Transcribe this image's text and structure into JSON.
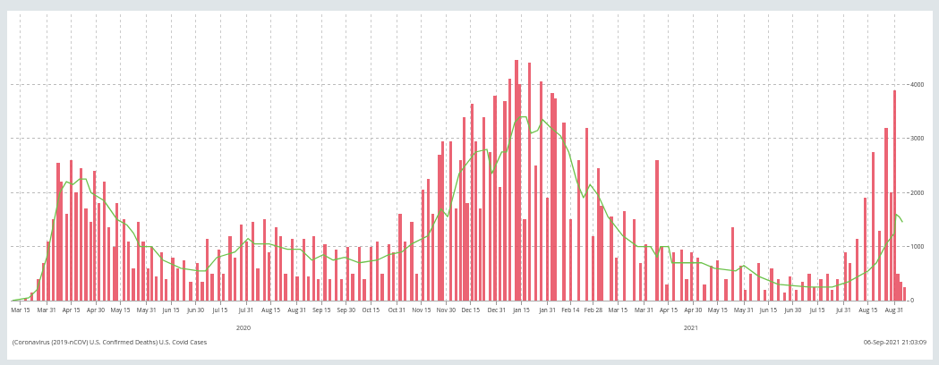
{
  "chart_data": {
    "type": "bar",
    "xlim": [
      "2020-03-09",
      "2021-09-07"
    ],
    "ylim": [
      0,
      5300
    ],
    "yticks": [
      0,
      1000,
      2000,
      3000,
      4000
    ],
    "xticks": [
      {
        "value": "2020-03-15",
        "label": "Mar 15"
      },
      {
        "value": "2020-03-31",
        "label": "Mar 31"
      },
      {
        "value": "2020-04-15",
        "label": "Apr 15"
      },
      {
        "value": "2020-04-30",
        "label": "Apr 30"
      },
      {
        "value": "2020-05-15",
        "label": "May 15"
      },
      {
        "value": "2020-05-31",
        "label": "May 31"
      },
      {
        "value": "2020-06-15",
        "label": "Jun 15"
      },
      {
        "value": "2020-06-30",
        "label": "Jun 30"
      },
      {
        "value": "2020-07-15",
        "label": "Jul 15"
      },
      {
        "value": "2020-07-31",
        "label": "Jul 31"
      },
      {
        "value": "2020-08-15",
        "label": "Aug 15"
      },
      {
        "value": "2020-08-31",
        "label": "Aug 31"
      },
      {
        "value": "2020-09-15",
        "label": "Sep 15"
      },
      {
        "value": "2020-09-30",
        "label": "Sep 30"
      },
      {
        "value": "2020-10-15",
        "label": "Oct 15"
      },
      {
        "value": "2020-10-31",
        "label": "Oct 31"
      },
      {
        "value": "2020-11-15",
        "label": "Nov 15"
      },
      {
        "value": "2020-11-30",
        "label": "Nov 30"
      },
      {
        "value": "2020-12-15",
        "label": "Dec 15"
      },
      {
        "value": "2020-12-31",
        "label": "Dec 31"
      },
      {
        "value": "2021-01-15",
        "label": "Jan 15"
      },
      {
        "value": "2021-01-31",
        "label": "Jan 31"
      },
      {
        "value": "2021-02-14",
        "label": "Feb 14"
      },
      {
        "value": "2021-02-28",
        "label": "Feb 28"
      },
      {
        "value": "2021-03-15",
        "label": "Mar 15"
      },
      {
        "value": "2021-03-31",
        "label": "Mar 31"
      },
      {
        "value": "2021-04-15",
        "label": "Apr 15"
      },
      {
        "value": "2021-04-30",
        "label": "Apr 30"
      },
      {
        "value": "2021-05-15",
        "label": "May 15"
      },
      {
        "value": "2021-05-31",
        "label": "May 31"
      },
      {
        "value": "2021-06-15",
        "label": "Jun 15"
      },
      {
        "value": "2021-06-30",
        "label": "Jun 30"
      },
      {
        "value": "2021-07-15",
        "label": "Jul 15"
      },
      {
        "value": "2021-07-31",
        "label": "Jul 31"
      },
      {
        "value": "2021-08-15",
        "label": "Aug 15"
      },
      {
        "value": "2021-08-31",
        "label": "Aug 31"
      }
    ],
    "grid": true,
    "annotations": [
      "2020",
      "2021",
      "(Coronavirus (2019-nCOV) U.S. Confirmed Deaths) U.S. Covid Cases",
      "06-Sep-2021 21:03:09"
    ],
    "series": [
      {
        "color": "#e84a5c",
        "x": [
          "2020-03-10",
          "2020-03-14",
          "2020-03-18",
          "2020-03-22",
          "2020-03-26",
          "2020-03-29",
          "2020-04-01",
          "2020-04-04",
          "2020-04-07",
          "2020-04-09",
          "2020-04-12",
          "2020-04-15",
          "2020-04-18",
          "2020-04-21",
          "2020-04-24",
          "2020-04-27",
          "2020-04-29",
          "2020-05-02",
          "2020-05-05",
          "2020-05-08",
          "2020-05-11",
          "2020-05-13",
          "2020-05-17",
          "2020-05-20",
          "2020-05-23",
          "2020-05-26",
          "2020-05-29",
          "2020-06-01",
          "2020-06-03",
          "2020-06-06",
          "2020-06-09",
          "2020-06-12",
          "2020-06-16",
          "2020-06-19",
          "2020-06-23",
          "2020-06-27",
          "2020-07-01",
          "2020-07-04",
          "2020-07-07",
          "2020-07-10",
          "2020-07-14",
          "2020-07-17",
          "2020-07-21",
          "2020-07-24",
          "2020-07-28",
          "2020-07-31",
          "2020-08-04",
          "2020-08-07",
          "2020-08-11",
          "2020-08-14",
          "2020-08-18",
          "2020-08-21",
          "2020-08-24",
          "2020-08-28",
          "2020-08-31",
          "2020-09-04",
          "2020-09-07",
          "2020-09-10",
          "2020-09-13",
          "2020-09-17",
          "2020-09-20",
          "2020-09-24",
          "2020-09-27",
          "2020-10-01",
          "2020-10-04",
          "2020-10-08",
          "2020-10-11",
          "2020-10-15",
          "2020-10-19",
          "2020-10-22",
          "2020-10-26",
          "2020-10-29",
          "2020-11-02",
          "2020-11-05",
          "2020-11-09",
          "2020-11-12",
          "2020-11-16",
          "2020-11-19",
          "2020-11-22",
          "2020-11-26",
          "2020-11-28",
          "2020-12-03",
          "2020-12-06",
          "2020-12-09",
          "2020-12-11",
          "2020-12-13",
          "2020-12-16",
          "2020-12-18",
          "2020-12-21",
          "2020-12-23",
          "2020-12-27",
          "2020-12-30",
          "2021-01-02",
          "2021-01-05",
          "2021-01-08",
          "2021-01-12",
          "2021-01-14",
          "2021-01-17",
          "2021-01-20",
          "2021-01-24",
          "2021-01-27",
          "2021-01-31",
          "2021-02-03",
          "2021-02-05",
          "2021-02-10",
          "2021-02-14",
          "2021-02-19",
          "2021-02-24",
          "2021-02-28",
          "2021-03-03",
          "2021-03-05",
          "2021-03-11",
          "2021-03-14",
          "2021-03-19",
          "2021-03-25",
          "2021-03-29",
          "2021-04-01",
          "2021-04-08",
          "2021-04-11",
          "2021-04-14",
          "2021-04-18",
          "2021-04-23",
          "2021-04-26",
          "2021-04-29",
          "2021-05-03",
          "2021-05-07",
          "2021-05-11",
          "2021-05-15",
          "2021-05-20",
          "2021-05-24",
          "2021-05-29",
          "2021-06-01",
          "2021-06-04",
          "2021-06-09",
          "2021-06-13",
          "2021-06-17",
          "2021-06-21",
          "2021-06-25",
          "2021-06-28",
          "2021-07-02",
          "2021-07-06",
          "2021-07-10",
          "2021-07-13",
          "2021-07-17",
          "2021-07-21",
          "2021-07-24",
          "2021-07-27",
          "2021-08-01",
          "2021-08-04",
          "2021-08-08",
          "2021-08-13",
          "2021-08-18",
          "2021-08-22",
          "2021-08-26",
          "2021-08-29",
          "2021-08-31",
          "2021-09-02",
          "2021-09-04",
          "2021-09-06"
        ],
        "values": [
          0,
          0,
          50,
          150,
          400,
          700,
          1100,
          1500,
          2550,
          2200,
          1600,
          2600,
          2000,
          2450,
          1700,
          1450,
          2400,
          1800,
          2200,
          1350,
          1000,
          1800,
          1500,
          1100,
          600,
          1450,
          1100,
          600,
          1000,
          450,
          900,
          400,
          800,
          600,
          750,
          350,
          700,
          350,
          1150,
          500,
          950,
          500,
          1200,
          800,
          1400,
          1100,
          1450,
          600,
          1500,
          900,
          1350,
          1200,
          500,
          1150,
          450,
          1150,
          450,
          1200,
          400,
          1050,
          400,
          950,
          400,
          1000,
          500,
          1000,
          400,
          1000,
          1100,
          500,
          1050,
          900,
          1600,
          1100,
          1450,
          500,
          2050,
          2250,
          1600,
          2700,
          2950,
          2950,
          1700,
          2600,
          3400,
          1800,
          3650,
          2950,
          1700,
          3400,
          2750,
          3800,
          2100,
          3700,
          4100,
          4450,
          4000,
          1500,
          4400,
          2500,
          4050,
          1900,
          3850,
          3750,
          3300,
          1500,
          2600,
          3200,
          1200,
          2450,
          1750,
          1550,
          800,
          1650,
          1500,
          700,
          1050,
          2600,
          1000,
          300,
          900,
          950,
          400,
          900,
          800,
          300,
          650,
          750,
          400,
          1350,
          650,
          200,
          500,
          700,
          200,
          600,
          400,
          150,
          450,
          200,
          350,
          500,
          250,
          400,
          500,
          200,
          400,
          900,
          700,
          1150,
          1900,
          2750,
          1300,
          3200,
          2000,
          3900,
          500,
          350,
          250
        ]
      },
      {
        "type": "line",
        "color": "#6cc24a",
        "x": [
          "2020-03-10",
          "2020-03-20",
          "2020-03-25",
          "2020-03-31",
          "2020-04-04",
          "2020-04-08",
          "2020-04-12",
          "2020-04-16",
          "2020-04-20",
          "2020-04-24",
          "2020-04-27",
          "2020-05-05",
          "2020-05-13",
          "2020-05-19",
          "2020-05-23",
          "2020-05-27",
          "2020-06-03",
          "2020-06-10",
          "2020-06-21",
          "2020-07-02",
          "2020-07-06",
          "2020-07-13",
          "2020-07-24",
          "2020-08-01",
          "2020-08-05",
          "2020-08-14",
          "2020-08-25",
          "2020-09-02",
          "2020-09-09",
          "2020-09-16",
          "2020-09-22",
          "2020-09-29",
          "2020-10-08",
          "2020-10-19",
          "2020-10-26",
          "2020-11-03",
          "2020-11-09",
          "2020-11-19",
          "2020-11-27",
          "2020-12-01",
          "2020-12-08",
          "2020-12-18",
          "2020-12-25",
          "2020-12-28",
          "2021-01-03",
          "2021-01-06",
          "2021-01-11",
          "2021-01-14",
          "2021-01-18",
          "2021-01-21",
          "2021-01-25",
          "2021-01-28",
          "2021-02-02",
          "2021-02-08",
          "2021-02-13",
          "2021-02-18",
          "2021-02-22",
          "2021-02-26",
          "2021-03-03",
          "2021-03-09",
          "2021-03-18",
          "2021-03-27",
          "2021-04-04",
          "2021-04-08",
          "2021-04-10",
          "2021-04-15",
          "2021-04-17",
          "2021-04-29",
          "2021-05-05",
          "2021-05-13",
          "2021-05-26",
          "2021-05-31",
          "2021-06-09",
          "2021-06-21",
          "2021-07-10",
          "2021-07-24",
          "2021-08-03",
          "2021-08-15",
          "2021-08-20",
          "2021-08-26",
          "2021-08-31",
          "2021-09-01",
          "2021-09-03",
          "2021-09-05"
        ],
        "values": [
          0,
          50,
          200,
          800,
          1400,
          2000,
          2200,
          2150,
          2250,
          2250,
          2000,
          1850,
          1500,
          1400,
          1250,
          1000,
          1000,
          750,
          600,
          550,
          550,
          800,
          900,
          1150,
          1050,
          1050,
          950,
          950,
          750,
          850,
          750,
          800,
          700,
          750,
          850,
          900,
          1050,
          1200,
          1700,
          1550,
          2350,
          2750,
          2800,
          2350,
          2750,
          2750,
          3300,
          3400,
          3400,
          3100,
          3150,
          3350,
          3200,
          3050,
          2750,
          2200,
          1900,
          2150,
          1950,
          1550,
          1200,
          1000,
          1000,
          800,
          1000,
          1000,
          700,
          700,
          700,
          600,
          550,
          650,
          450,
          300,
          250,
          250,
          350,
          550,
          700,
          1050,
          1250,
          1600,
          1550,
          1450
        ]
      }
    ]
  }
}
